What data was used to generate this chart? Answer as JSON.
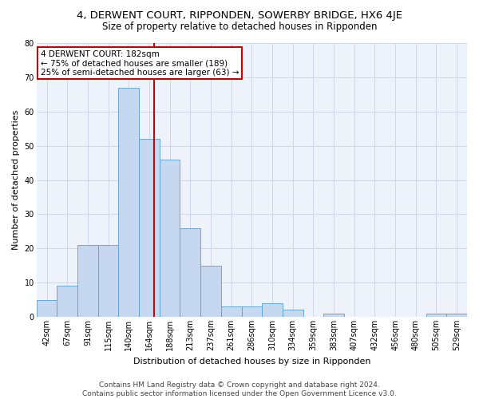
{
  "title": "4, DERWENT COURT, RIPPONDEN, SOWERBY BRIDGE, HX6 4JE",
  "subtitle": "Size of property relative to detached houses in Ripponden",
  "xlabel": "Distribution of detached houses by size in Ripponden",
  "ylabel": "Number of detached properties",
  "bin_labels": [
    "42sqm",
    "67sqm",
    "91sqm",
    "115sqm",
    "140sqm",
    "164sqm",
    "188sqm",
    "213sqm",
    "237sqm",
    "261sqm",
    "286sqm",
    "310sqm",
    "334sqm",
    "359sqm",
    "383sqm",
    "407sqm",
    "432sqm",
    "456sqm",
    "480sqm",
    "505sqm",
    "529sqm"
  ],
  "bar_heights": [
    5,
    9,
    21,
    21,
    67,
    52,
    46,
    26,
    15,
    3,
    3,
    4,
    2,
    0,
    1,
    0,
    0,
    0,
    0,
    1,
    1
  ],
  "bar_color": "#c5d8f0",
  "bar_edgecolor": "#5a9fd4",
  "vline_color": "#cc0000",
  "annotation_box_text": "4 DERWENT COURT: 182sqm\n← 75% of detached houses are smaller (189)\n25% of semi-detached houses are larger (63) →",
  "annotation_box_color": "#cc0000",
  "ylim": [
    0,
    80
  ],
  "yticks": [
    0,
    10,
    20,
    30,
    40,
    50,
    60,
    70,
    80
  ],
  "grid_color": "#d0d8e8",
  "background_color": "#eef2fb",
  "footer_line1": "Contains HM Land Registry data © Crown copyright and database right 2024.",
  "footer_line2": "Contains public sector information licensed under the Open Government Licence v3.0.",
  "title_fontsize": 9.5,
  "subtitle_fontsize": 8.5,
  "xlabel_fontsize": 8,
  "ylabel_fontsize": 8,
  "tick_fontsize": 7,
  "footer_fontsize": 6.5,
  "annot_fontsize": 7.5
}
